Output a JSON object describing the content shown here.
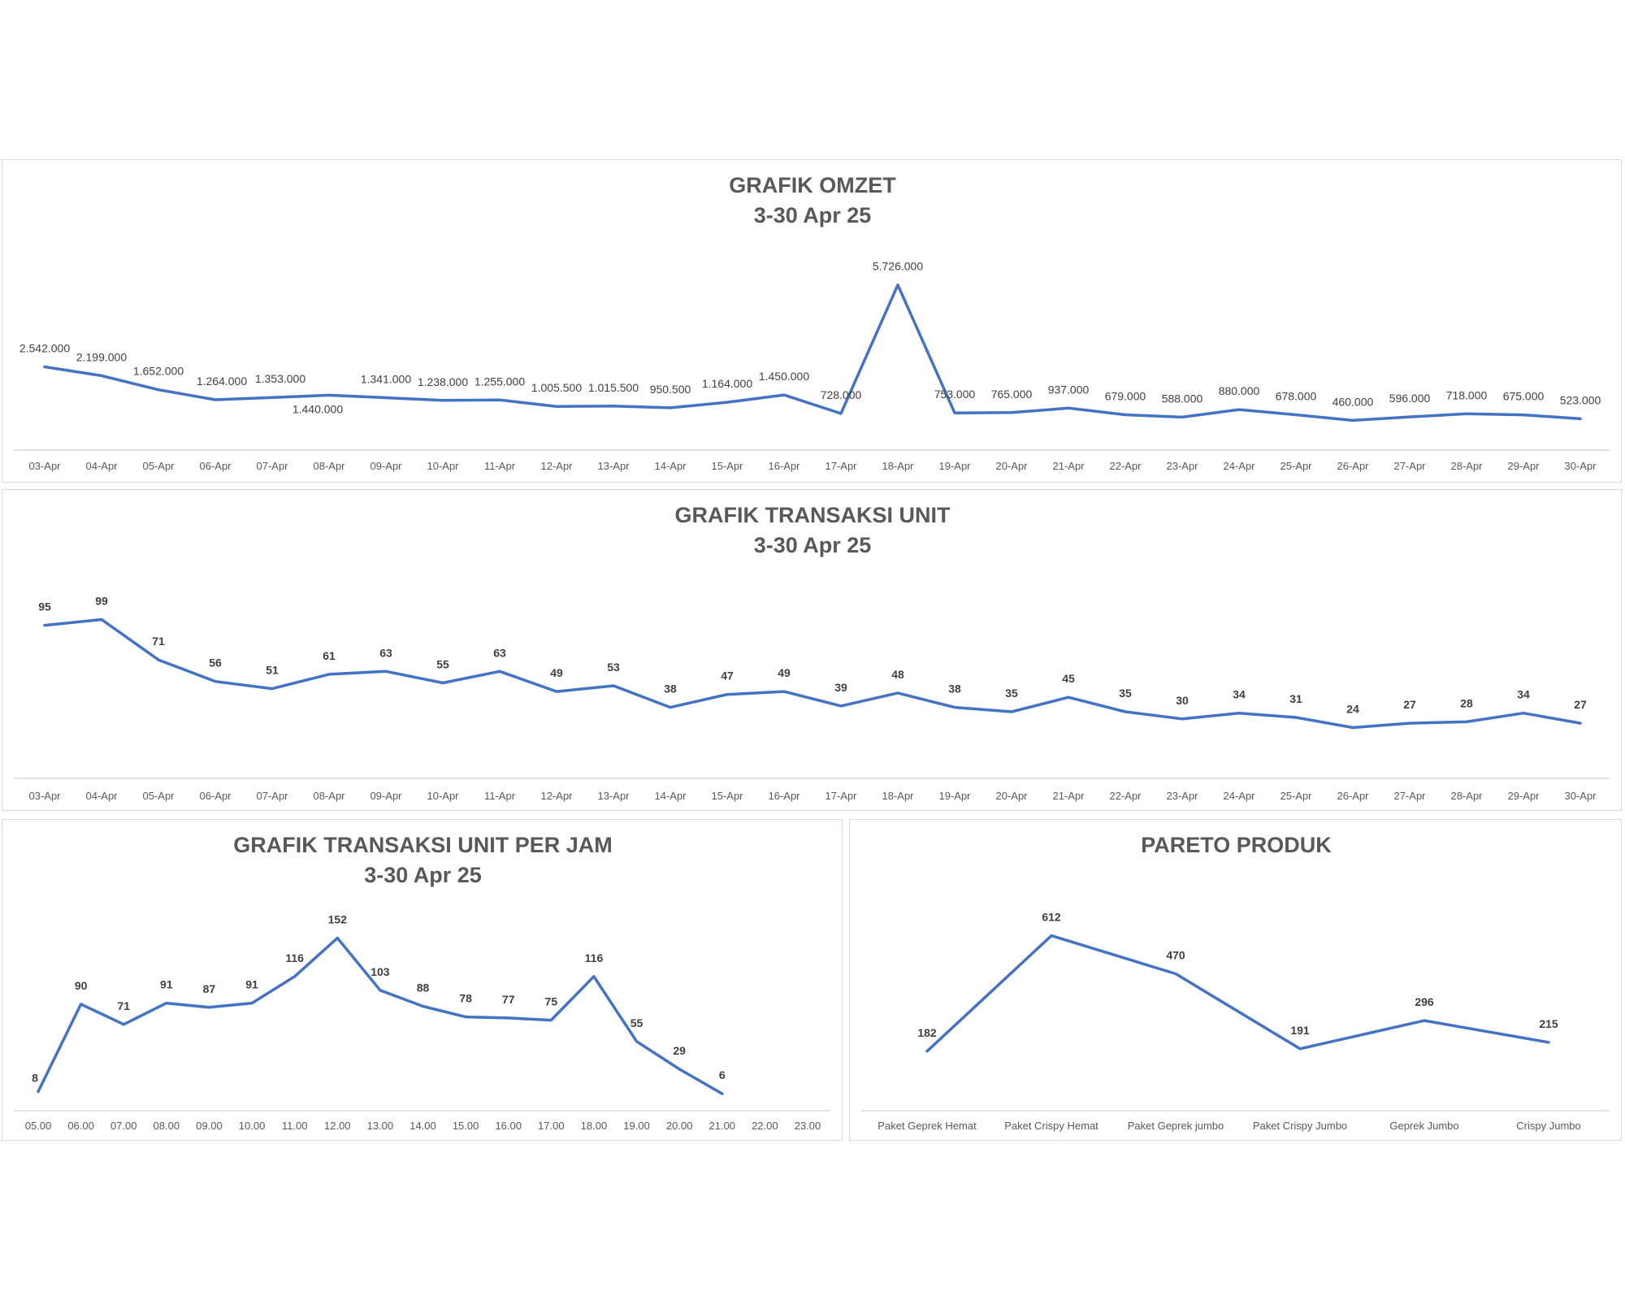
{
  "colors": {
    "series": "#4472C4",
    "axis": "#d9d9d9",
    "title": "#595959",
    "label": "#404040"
  },
  "chart_data": [
    {
      "type": "line",
      "title": "GRAFIK OMZET",
      "subtitle": "3-30 Apr 25",
      "categories": [
        "03-Apr",
        "04-Apr",
        "05-Apr",
        "06-Apr",
        "07-Apr",
        "08-Apr",
        "09-Apr",
        "10-Apr",
        "11-Apr",
        "12-Apr",
        "13-Apr",
        "14-Apr",
        "15-Apr",
        "16-Apr",
        "17-Apr",
        "18-Apr",
        "19-Apr",
        "20-Apr",
        "21-Apr",
        "22-Apr",
        "23-Apr",
        "24-Apr",
        "25-Apr",
        "26-Apr",
        "27-Apr",
        "28-Apr",
        "29-Apr",
        "30-Apr"
      ],
      "values": [
        2542000,
        2199000,
        1652000,
        1264000,
        1353000,
        1440000,
        1341000,
        1238000,
        1255000,
        1005500,
        1015500,
        950500,
        1164000,
        1450000,
        728000,
        5726000,
        753000,
        765000,
        937000,
        679000,
        588000,
        880000,
        678000,
        460000,
        596000,
        718000,
        675000,
        523000
      ],
      "data_labels": [
        "2.542.000",
        "2.199.000",
        "1.652.000",
        "1.264.000",
        "1.353.000",
        "1.440.000",
        "1.341.000",
        "1.238.000",
        "1.255.000",
        "1.005.500",
        "1.015.500",
        "950.500",
        "1.164.000",
        "1.450.000",
        "728.000",
        "5.726.000",
        "753.000",
        "765.000",
        "937.000",
        "679.000",
        "588.000",
        "880.000",
        "678.000",
        "460.000",
        "596.000",
        "718.000",
        "675.000",
        "523.000"
      ],
      "label_font": "normal",
      "grid": false
    },
    {
      "type": "line",
      "title": "GRAFIK TRANSAKSI UNIT",
      "subtitle": "3-30 Apr 25",
      "categories": [
        "03-Apr",
        "04-Apr",
        "05-Apr",
        "06-Apr",
        "07-Apr",
        "08-Apr",
        "09-Apr",
        "10-Apr",
        "11-Apr",
        "12-Apr",
        "13-Apr",
        "14-Apr",
        "15-Apr",
        "16-Apr",
        "17-Apr",
        "18-Apr",
        "19-Apr",
        "20-Apr",
        "21-Apr",
        "22-Apr",
        "23-Apr",
        "24-Apr",
        "25-Apr",
        "26-Apr",
        "27-Apr",
        "28-Apr",
        "29-Apr",
        "30-Apr"
      ],
      "values": [
        95,
        99,
        71,
        56,
        51,
        61,
        63,
        55,
        63,
        49,
        53,
        38,
        47,
        49,
        39,
        48,
        38,
        35,
        45,
        35,
        30,
        34,
        31,
        24,
        27,
        28,
        34,
        27
      ],
      "data_labels": [
        "95",
        "99",
        "71",
        "56",
        "51",
        "61",
        "63",
        "55",
        "63",
        "49",
        "53",
        "38",
        "47",
        "49",
        "39",
        "48",
        "38",
        "35",
        "45",
        "35",
        "30",
        "34",
        "31",
        "24",
        "27",
        "28",
        "34",
        "27"
      ],
      "label_font": "bold",
      "grid": false
    },
    {
      "type": "line",
      "title": "GRAFIK TRANSAKSI UNIT PER JAM",
      "subtitle": "3-30 Apr 25",
      "categories": [
        "05.00",
        "06.00",
        "07.00",
        "08.00",
        "09.00",
        "10.00",
        "11.00",
        "12.00",
        "13.00",
        "14.00",
        "15.00",
        "16.00",
        "17.00",
        "18.00",
        "19.00",
        "20.00",
        "21.00",
        "22.00",
        "23.00"
      ],
      "values": [
        8,
        90,
        71,
        91,
        87,
        91,
        116,
        152,
        103,
        88,
        78,
        77,
        75,
        116,
        55,
        29,
        6,
        null,
        null
      ],
      "data_labels": [
        "8",
        "90",
        "71",
        "91",
        "87",
        "91",
        "116",
        "152",
        "103",
        "88",
        "78",
        "77",
        "75",
        "116",
        "55",
        "29",
        "6",
        "",
        ""
      ],
      "label_font": "bold",
      "grid": false
    },
    {
      "type": "line",
      "title": "PARETO PRODUK",
      "subtitle": "",
      "categories": [
        "Paket Geprek Hemat",
        "Paket Crispy Hemat",
        "Paket Geprek jumbo",
        "Paket Crispy Jumbo",
        "Geprek Jumbo",
        "Crispy Jumbo"
      ],
      "values": [
        182,
        612,
        470,
        191,
        296,
        215
      ],
      "data_labels": [
        "182",
        "612",
        "470",
        "191",
        "296",
        "215"
      ],
      "label_font": "bold",
      "grid": false
    }
  ]
}
